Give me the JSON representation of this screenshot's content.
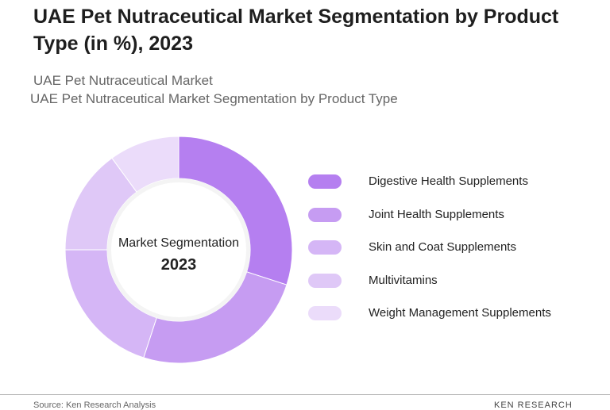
{
  "page": {
    "title": "UAE Pet Nutraceutical Market Segmentation by Product Type  (in %), 2023",
    "subtitle_1": "UAE Pet Nutraceutical Market",
    "subtitle_2": "UAE Pet Nutraceutical Market Segmentation by Product Type",
    "center_title": "Market Segmentation",
    "center_year": "2023",
    "source": "Source: Ken Research Analysis",
    "logo_text": "KEN RESEARCH"
  },
  "chart_data": {
    "type": "pie",
    "donut": true,
    "categories": [
      "Digestive Health Supplements",
      "Joint Health Supplements",
      "Skin and Coat Supplements",
      "Multivitamins",
      "Weight Management Supplements"
    ],
    "values": [
      30,
      25,
      20,
      15,
      10
    ],
    "colors": [
      "#b57ff0",
      "#c69cf2",
      "#d5b6f6",
      "#dfc8f7",
      "#ebdcfa"
    ],
    "legend_position": "right"
  }
}
